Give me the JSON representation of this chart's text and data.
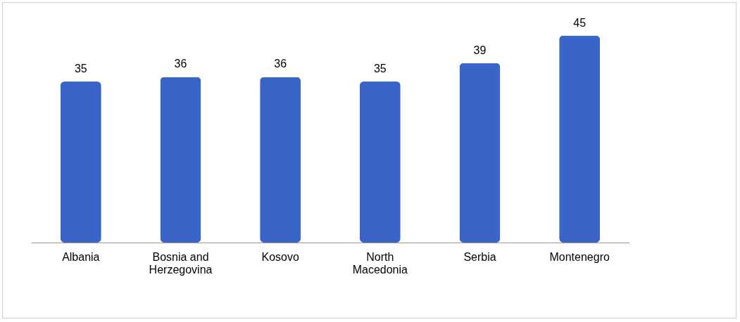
{
  "chart_data": {
    "type": "bar",
    "relative": false,
    "categories": [
      "Albania",
      "Bosnia and Herzegovina",
      "Kosovo",
      "North Macedonia",
      "Serbia",
      "Montenegro"
    ],
    "values": [
      35,
      36,
      36,
      35,
      39,
      45
    ],
    "color": "#3b64c8",
    "data_labels": true
  }
}
